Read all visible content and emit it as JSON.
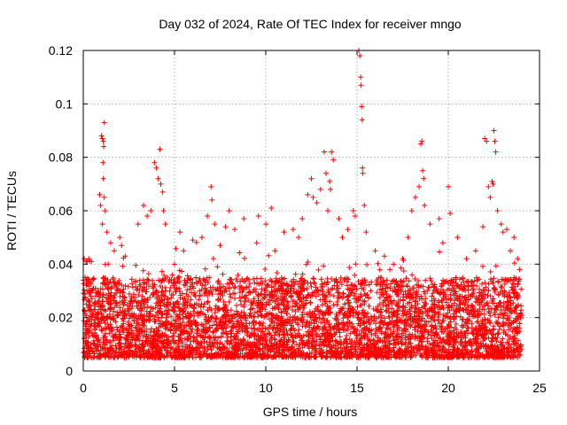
{
  "chart_data": {
    "type": "scatter",
    "title": "Day 032 of 2024, Rate Of TEC Index for receiver mngo",
    "xlabel": "GPS time / hours",
    "ylabel": "ROTI / TECUs",
    "xlim": [
      0,
      25
    ],
    "ylim": [
      0,
      0.12
    ],
    "xticks": [
      0,
      5,
      10,
      15,
      20,
      25
    ],
    "yticks": [
      0,
      0.02,
      0.04,
      0.06,
      0.08,
      0.1,
      0.12
    ],
    "xtick_labels": [
      "0",
      "5",
      "10",
      "15",
      "20",
      "25"
    ],
    "ytick_labels": [
      "0",
      "0.02",
      "0.04",
      "0.06",
      "0.08",
      "0.1",
      "0.12"
    ],
    "grid": true,
    "marker": "+",
    "color": "#ff0000",
    "series": [
      {
        "name": "ROTI",
        "description": "Dense cloud of ROTI values from 0 to 24 h, mostly between 0.005 and 0.035 TECU/s",
        "points": [
          [
            0.05,
            0.042
          ],
          [
            0.15,
            0.041
          ],
          [
            0.3,
            0.042
          ],
          [
            0.45,
            0.041
          ],
          [
            0.1,
            0.035
          ],
          [
            0.2,
            0.03
          ],
          [
            0.9,
            0.066
          ],
          [
            0.95,
            0.062
          ],
          [
            1.0,
            0.088
          ],
          [
            1.05,
            0.087
          ],
          [
            1.1,
            0.086
          ],
          [
            1.12,
            0.084
          ],
          [
            1.15,
            0.093
          ],
          [
            1.08,
            0.078
          ],
          [
            1.1,
            0.072
          ],
          [
            1.15,
            0.065
          ],
          [
            1.2,
            0.06
          ],
          [
            1.05,
            0.055
          ],
          [
            1.3,
            0.052
          ],
          [
            1.5,
            0.048
          ],
          [
            1.7,
            0.045
          ],
          [
            2.0,
            0.05
          ],
          [
            2.1,
            0.047
          ],
          [
            2.3,
            0.043
          ],
          [
            3.0,
            0.055
          ],
          [
            3.3,
            0.062
          ],
          [
            3.5,
            0.058
          ],
          [
            3.7,
            0.06
          ],
          [
            3.9,
            0.078
          ],
          [
            4.0,
            0.076
          ],
          [
            4.1,
            0.072
          ],
          [
            4.2,
            0.083
          ],
          [
            4.25,
            0.07
          ],
          [
            4.35,
            0.067
          ],
          [
            4.4,
            0.06
          ],
          [
            4.5,
            0.055
          ],
          [
            5.0,
            0.04
          ],
          [
            5.3,
            0.052
          ],
          [
            5.5,
            0.045
          ],
          [
            6.0,
            0.049
          ],
          [
            6.5,
            0.05
          ],
          [
            6.8,
            0.058
          ],
          [
            7.0,
            0.069
          ],
          [
            7.05,
            0.064
          ],
          [
            7.2,
            0.055
          ],
          [
            7.5,
            0.047
          ],
          [
            7.8,
            0.054
          ],
          [
            8.0,
            0.06
          ],
          [
            8.3,
            0.053
          ],
          [
            8.8,
            0.057
          ],
          [
            9.5,
            0.048
          ],
          [
            9.6,
            0.058
          ],
          [
            10.0,
            0.055
          ],
          [
            10.3,
            0.061
          ],
          [
            10.5,
            0.045
          ],
          [
            11.0,
            0.052
          ],
          [
            11.5,
            0.053
          ],
          [
            11.8,
            0.05
          ],
          [
            12.0,
            0.057
          ],
          [
            12.3,
            0.066
          ],
          [
            12.5,
            0.072
          ],
          [
            12.6,
            0.065
          ],
          [
            12.8,
            0.063
          ],
          [
            13.0,
            0.068
          ],
          [
            13.2,
            0.082
          ],
          [
            13.3,
            0.074
          ],
          [
            13.4,
            0.06
          ],
          [
            13.5,
            0.071
          ],
          [
            13.55,
            0.068
          ],
          [
            13.6,
            0.082
          ],
          [
            13.7,
            0.079
          ],
          [
            14.0,
            0.057
          ],
          [
            14.2,
            0.05
          ],
          [
            14.5,
            0.053
          ],
          [
            14.8,
            0.06
          ],
          [
            14.9,
            0.058
          ],
          [
            15.1,
            0.124
          ],
          [
            15.15,
            0.118
          ],
          [
            15.2,
            0.11
          ],
          [
            15.22,
            0.107
          ],
          [
            15.25,
            0.099
          ],
          [
            15.28,
            0.094
          ],
          [
            15.3,
            0.076
          ],
          [
            15.32,
            0.074
          ],
          [
            15.4,
            0.062
          ],
          [
            15.5,
            0.052
          ],
          [
            16.0,
            0.045
          ],
          [
            16.5,
            0.043
          ],
          [
            16.8,
            0.038
          ],
          [
            17.0,
            0.04
          ],
          [
            17.5,
            0.042
          ],
          [
            17.8,
            0.05
          ],
          [
            18.0,
            0.06
          ],
          [
            18.2,
            0.065
          ],
          [
            18.4,
            0.069
          ],
          [
            18.5,
            0.085
          ],
          [
            18.55,
            0.086
          ],
          [
            18.6,
            0.075
          ],
          [
            18.65,
            0.072
          ],
          [
            18.7,
            0.062
          ],
          [
            19.0,
            0.055
          ],
          [
            19.5,
            0.057
          ],
          [
            19.7,
            0.048
          ],
          [
            20.0,
            0.069
          ],
          [
            20.1,
            0.059
          ],
          [
            20.5,
            0.05
          ],
          [
            21.0,
            0.042
          ],
          [
            21.5,
            0.045
          ],
          [
            21.9,
            0.054
          ],
          [
            22.0,
            0.087
          ],
          [
            22.1,
            0.086
          ],
          [
            22.2,
            0.069
          ],
          [
            22.3,
            0.065
          ],
          [
            22.4,
            0.071
          ],
          [
            22.45,
            0.07
          ],
          [
            22.5,
            0.09
          ],
          [
            22.55,
            0.086
          ],
          [
            22.6,
            0.082
          ],
          [
            22.7,
            0.06
          ],
          [
            22.9,
            0.055
          ],
          [
            23.0,
            0.052
          ],
          [
            23.2,
            0.053
          ],
          [
            23.4,
            0.045
          ],
          [
            23.6,
            0.05
          ],
          [
            23.8,
            0.042
          ],
          [
            23.9,
            0.038
          ]
        ],
        "baseline_band": [
          0.005,
          0.035
        ],
        "sample_count": 4800,
        "seed": 32
      }
    ]
  }
}
